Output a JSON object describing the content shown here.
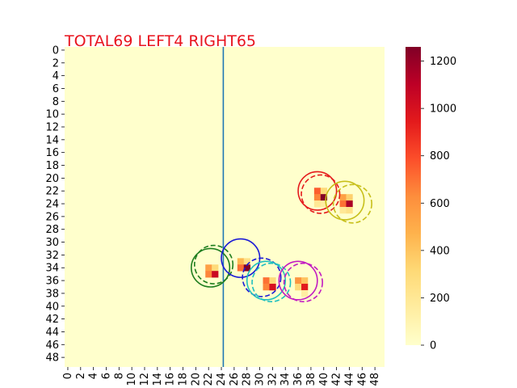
{
  "chart_data": {
    "type": "heatmap",
    "title": "TOTAL69  LEFT4 RIGHT65",
    "title_color": "#e8141e",
    "grid_size": 50,
    "x_ticks": [
      "0",
      "2",
      "4",
      "6",
      "8",
      "10",
      "12",
      "14",
      "16",
      "18",
      "20",
      "22",
      "24",
      "26",
      "28",
      "30",
      "32",
      "34",
      "36",
      "38",
      "40",
      "42",
      "44",
      "46",
      "48"
    ],
    "y_ticks": [
      "0",
      "2",
      "4",
      "6",
      "8",
      "10",
      "12",
      "14",
      "16",
      "18",
      "20",
      "22",
      "24",
      "26",
      "28",
      "30",
      "32",
      "34",
      "36",
      "38",
      "40",
      "42",
      "44",
      "46",
      "48"
    ],
    "colorbar": {
      "colormap": "YlOrRd",
      "range": [
        0,
        1260
      ],
      "ticks": [
        "0",
        "200",
        "400",
        "600",
        "800",
        "1000",
        "1200"
      ],
      "tick_values": [
        0,
        200,
        400,
        600,
        800,
        1000,
        1200
      ]
    },
    "divider_x": 24.8,
    "divider_color": "#1f77b4",
    "cells": [
      {
        "row": 22,
        "col": 39,
        "value": 750
      },
      {
        "row": 22,
        "col": 40,
        "value": 300
      },
      {
        "row": 23,
        "col": 39,
        "value": 650
      },
      {
        "row": 23,
        "col": 40,
        "value": 1250
      },
      {
        "row": 24,
        "col": 39,
        "value": 200
      },
      {
        "row": 24,
        "col": 40,
        "value": 150
      },
      {
        "row": 23,
        "col": 43,
        "value": 550
      },
      {
        "row": 23,
        "col": 44,
        "value": 350
      },
      {
        "row": 24,
        "col": 43,
        "value": 700
      },
      {
        "row": 24,
        "col": 44,
        "value": 1150
      },
      {
        "row": 25,
        "col": 43,
        "value": 200
      },
      {
        "row": 25,
        "col": 44,
        "value": 250
      },
      {
        "row": 34,
        "col": 22,
        "value": 550
      },
      {
        "row": 34,
        "col": 23,
        "value": 300
      },
      {
        "row": 35,
        "col": 22,
        "value": 650
      },
      {
        "row": 35,
        "col": 23,
        "value": 1050
      },
      {
        "row": 33,
        "col": 27,
        "value": 450
      },
      {
        "row": 33,
        "col": 28,
        "value": 250
      },
      {
        "row": 34,
        "col": 27,
        "value": 700
      },
      {
        "row": 34,
        "col": 28,
        "value": 1250
      },
      {
        "row": 36,
        "col": 31,
        "value": 700
      },
      {
        "row": 36,
        "col": 32,
        "value": 300
      },
      {
        "row": 37,
        "col": 31,
        "value": 650
      },
      {
        "row": 37,
        "col": 32,
        "value": 1000
      },
      {
        "row": 36,
        "col": 36,
        "value": 600
      },
      {
        "row": 36,
        "col": 37,
        "value": 400
      },
      {
        "row": 37,
        "col": 36,
        "value": 300
      },
      {
        "row": 37,
        "col": 37,
        "value": 950
      },
      {
        "row": 38,
        "col": 37,
        "value": 150
      }
    ],
    "circles": [
      {
        "cx": 40,
        "cy": 23,
        "r": 3,
        "color": "#e41a1c",
        "style": "dashed"
      },
      {
        "cx": 39.5,
        "cy": 22.5,
        "r": 3,
        "color": "#e41a1c",
        "style": "solid"
      },
      {
        "cx": 45,
        "cy": 24.5,
        "r": 3,
        "color": "#c7bf1a",
        "style": "dashed"
      },
      {
        "cx": 43.8,
        "cy": 24,
        "r": 3,
        "color": "#c7bf1a",
        "style": "solid"
      },
      {
        "cx": 23.3,
        "cy": 34,
        "r": 3,
        "color": "#1e7d1e",
        "style": "dashed"
      },
      {
        "cx": 22.8,
        "cy": 34.5,
        "r": 3,
        "color": "#1e7d1e",
        "style": "solid"
      },
      {
        "cx": 30.8,
        "cy": 36,
        "r": 3,
        "color": "#1a1ad6",
        "style": "dashed"
      },
      {
        "cx": 27.5,
        "cy": 33,
        "r": 3,
        "color": "#1a1ad6",
        "style": "solid"
      },
      {
        "cx": 32.3,
        "cy": 36.8,
        "r": 3,
        "color": "#1fbfbf",
        "style": "dashed"
      },
      {
        "cx": 31.5,
        "cy": 36.5,
        "r": 3,
        "color": "#1fbfbf",
        "style": "solid"
      },
      {
        "cx": 37.3,
        "cy": 36.8,
        "r": 3,
        "color": "#c21ac2",
        "style": "dashed"
      },
      {
        "cx": 36.5,
        "cy": 36.5,
        "r": 3,
        "color": "#c21ac2",
        "style": "solid"
      }
    ]
  }
}
